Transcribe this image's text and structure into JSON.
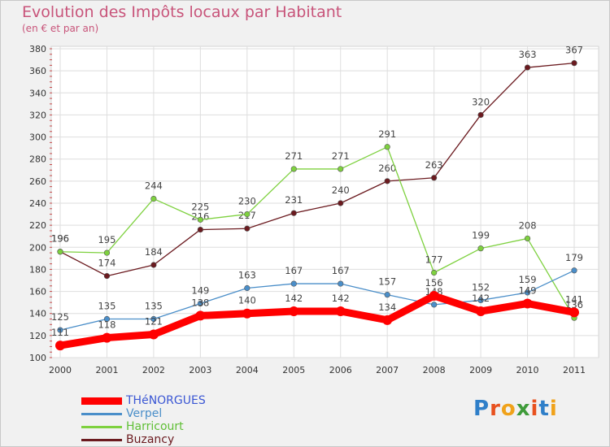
{
  "title": "Evolution des Impôts locaux par Habitant",
  "subtitle": "(en € et par an)",
  "brand": "Proxiti",
  "chart_data": {
    "type": "line",
    "title": "Evolution des Impôts locaux par Habitant",
    "subtitle": "(en € et par an)",
    "xlabel": "",
    "ylabel": "",
    "categories": [
      "2000",
      "2001",
      "2002",
      "2003",
      "2004",
      "2005",
      "2006",
      "2007",
      "2008",
      "2009",
      "2010",
      "2011"
    ],
    "ylim": [
      100,
      380
    ],
    "yticks": [
      100,
      120,
      140,
      160,
      180,
      200,
      220,
      240,
      260,
      280,
      300,
      320,
      340,
      360,
      380
    ],
    "grid": true,
    "legend_position": "bottom-left",
    "series": [
      {
        "name": "THéNORGUES",
        "color": "#ff0000",
        "values": [
          111,
          118,
          121,
          138,
          140,
          142,
          142,
          134,
          156,
          142,
          149,
          141
        ]
      },
      {
        "name": "Verpel",
        "color": "#4a8ec9",
        "values": [
          125,
          135,
          135,
          149,
          163,
          167,
          167,
          157,
          148,
          152,
          159,
          179
        ]
      },
      {
        "name": "Harricourt",
        "color": "#7ed13f",
        "values": [
          196,
          195,
          244,
          225,
          230,
          271,
          271,
          291,
          177,
          199,
          208,
          136
        ]
      },
      {
        "name": "Buzancy",
        "color": "#6b1a1f",
        "values": [
          196,
          174,
          184,
          216,
          217,
          231,
          240,
          260,
          263,
          320,
          363,
          367
        ]
      }
    ]
  }
}
